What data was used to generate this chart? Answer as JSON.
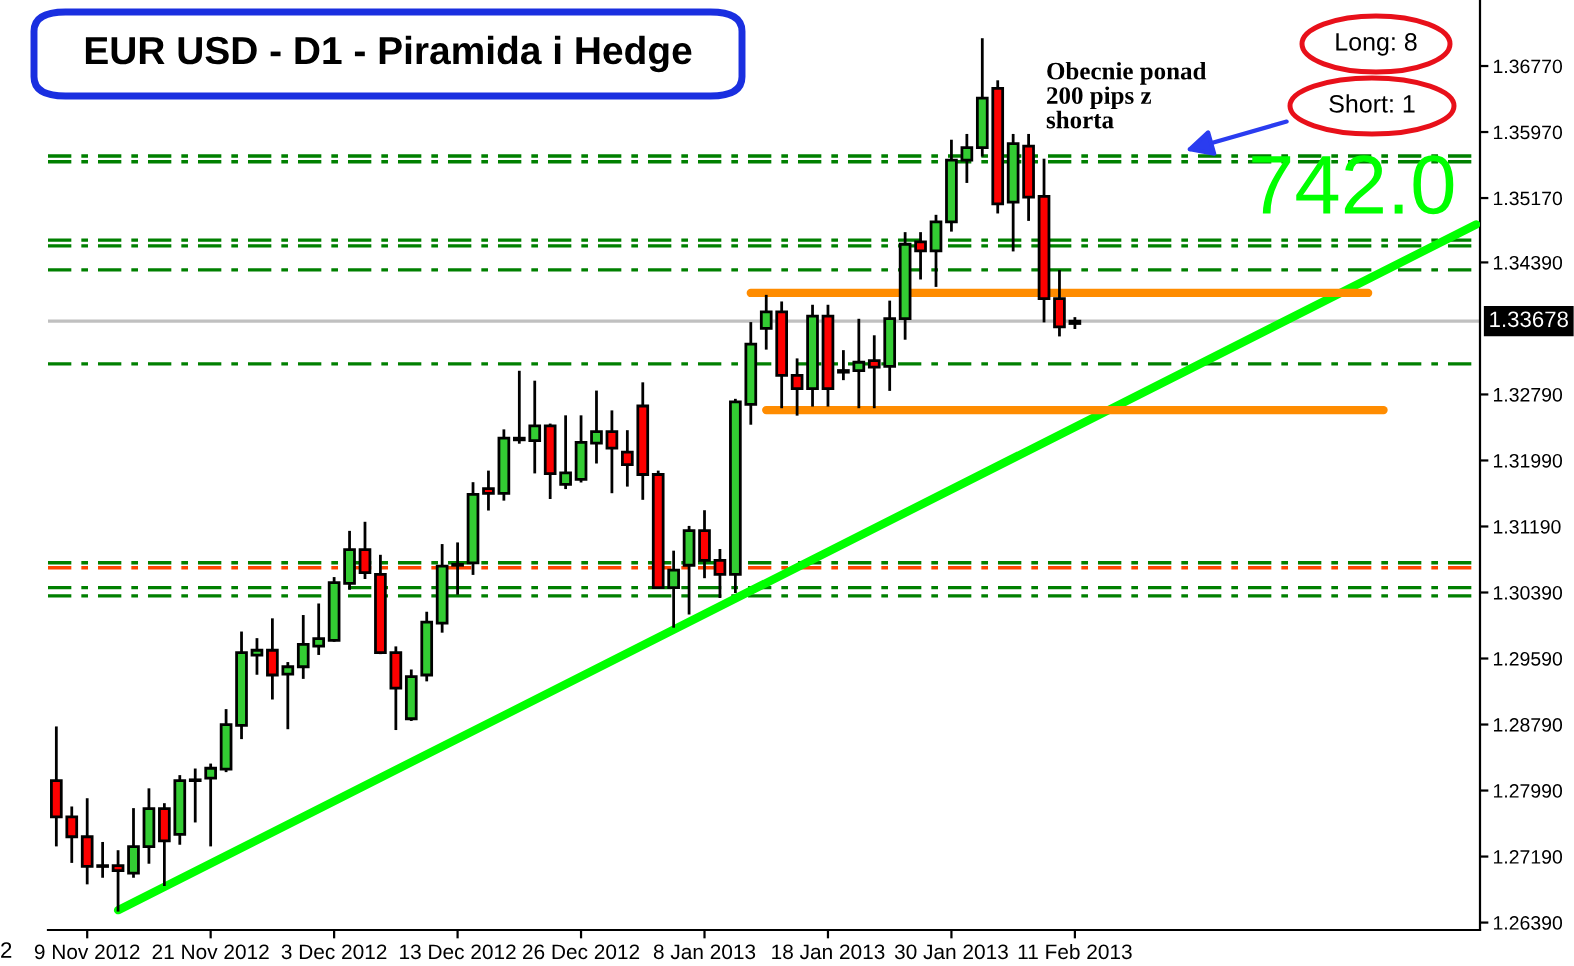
{
  "chart_data": {
    "type": "candlestick",
    "title": "EUR USD - D1 - Piramida i Hedge",
    "categories": [
      null,
      null,
      "9 Nov 2012",
      null,
      null,
      null,
      null,
      null,
      null,
      null,
      "21 Nov 2012",
      null,
      null,
      null,
      null,
      null,
      null,
      null,
      "3 Dec 2012",
      null,
      null,
      null,
      null,
      null,
      null,
      null,
      "13 Dec 2012",
      null,
      null,
      null,
      null,
      null,
      null,
      null,
      "26 Dec 2012",
      null,
      null,
      null,
      null,
      null,
      null,
      null,
      "8 Jan 2013",
      null,
      null,
      null,
      null,
      null,
      null,
      null,
      "18 Jan 2013",
      null,
      null,
      null,
      null,
      null,
      null,
      null,
      "30 Jan 2013",
      null,
      null,
      null,
      null,
      null,
      null,
      null,
      "11 Feb 2013",
      null,
      null,
      null,
      null,
      null,
      null,
      null,
      null,
      null,
      null,
      null,
      null,
      null,
      null,
      null,
      null,
      null,
      null,
      null,
      null,
      null,
      null,
      null,
      null,
      null,
      null
    ],
    "ohlc": [
      [
        1.2811,
        1.2875,
        1.2733,
        1.2767
      ],
      [
        1.2767,
        1.2778,
        1.2713,
        1.2743
      ],
      [
        1.2743,
        1.2788,
        1.2687,
        1.2707
      ],
      [
        1.2708,
        1.2735,
        1.2695,
        1.2707
      ],
      [
        1.2708,
        1.2725,
        1.2654,
        1.2702
      ],
      [
        1.2699,
        1.2776,
        1.2695,
        1.2731
      ],
      [
        1.2731,
        1.28,
        1.2712,
        1.2777
      ],
      [
        1.2777,
        1.2782,
        1.2685,
        1.2738
      ],
      [
        1.2746,
        1.2816,
        1.2735,
        1.2811
      ],
      [
        1.2811,
        1.2824,
        1.2762,
        1.2812
      ],
      [
        1.2814,
        1.283,
        1.2733,
        1.2826
      ],
      [
        1.2825,
        1.2896,
        1.2823,
        1.2879
      ],
      [
        1.2878,
        1.299,
        1.2863,
        1.2966
      ],
      [
        1.2963,
        1.2982,
        1.2941,
        1.2969
      ],
      [
        1.2969,
        1.3006,
        1.2911,
        1.2939
      ],
      [
        1.294,
        1.2953,
        1.2875,
        1.2949
      ],
      [
        1.2949,
        1.301,
        1.2936,
        1.2976
      ],
      [
        1.2974,
        1.3024,
        1.2965,
        1.2983
      ],
      [
        1.2981,
        1.3056,
        1.2981,
        1.3051
      ],
      [
        1.305,
        1.3112,
        1.3044,
        1.3091
      ],
      [
        1.3091,
        1.3123,
        1.3057,
        1.3063
      ],
      [
        1.3061,
        1.3083,
        1.2966,
        1.2966
      ],
      [
        1.2966,
        1.2972,
        1.2874,
        1.2923
      ],
      [
        1.2886,
        1.2944,
        1.2885,
        1.2937
      ],
      [
        1.2939,
        1.3014,
        1.2933,
        1.3003
      ],
      [
        1.3002,
        1.3096,
        1.2992,
        1.3071
      ],
      [
        1.3072,
        1.3098,
        1.3038,
        1.3073
      ],
      [
        1.3075,
        1.3171,
        1.3062,
        1.3158
      ],
      [
        1.3165,
        1.3185,
        1.314,
        1.3159
      ],
      [
        1.3159,
        1.3235,
        1.3152,
        1.3226
      ],
      [
        1.3226,
        1.3306,
        1.3221,
        1.3224
      ],
      [
        1.3223,
        1.3294,
        1.3185,
        1.3241
      ],
      [
        1.3241,
        1.3242,
        1.3154,
        1.3183
      ],
      [
        1.317,
        1.3252,
        1.3166,
        1.3184
      ],
      [
        1.3176,
        1.3252,
        1.3174,
        1.3221
      ],
      [
        1.322,
        1.3282,
        1.3197,
        1.3234
      ],
      [
        1.3234,
        1.3258,
        1.3161,
        1.3214
      ],
      [
        1.3209,
        1.3234,
        1.3169,
        1.3194
      ],
      [
        1.3265,
        1.3292,
        1.3153,
        1.3182
      ],
      [
        1.3182,
        1.3185,
        1.3045,
        1.3045
      ],
      [
        1.3045,
        1.3088,
        1.2998,
        1.3066
      ],
      [
        1.3072,
        1.3118,
        1.3014,
        1.3114
      ],
      [
        1.3114,
        1.3137,
        1.3058,
        1.3078
      ],
      [
        1.3078,
        1.309,
        1.3034,
        1.3061
      ],
      [
        1.3061,
        1.3272,
        1.304,
        1.327
      ],
      [
        1.3267,
        1.3365,
        1.3244,
        1.334
      ],
      [
        1.3359,
        1.3398,
        1.3335,
        1.3379
      ],
      [
        1.3379,
        1.339,
        1.3264,
        1.3302
      ],
      [
        1.3302,
        1.3321,
        1.3255,
        1.3286
      ],
      [
        1.3286,
        1.3386,
        1.3266,
        1.3374
      ],
      [
        1.3374,
        1.3386,
        1.3266,
        1.3286
      ],
      [
        1.3308,
        1.3331,
        1.3298,
        1.3306
      ],
      [
        1.3308,
        1.3369,
        1.3264,
        1.3318
      ],
      [
        1.332,
        1.3349,
        1.3264,
        1.3312
      ],
      [
        1.3313,
        1.3391,
        1.3285,
        1.3371
      ],
      [
        1.3371,
        1.3474,
        1.3347,
        1.3461
      ],
      [
        1.3464,
        1.3474,
        1.342,
        1.3453
      ],
      [
        1.3453,
        1.3495,
        1.3411,
        1.3488
      ],
      [
        1.3488,
        1.3586,
        1.3478,
        1.3563
      ],
      [
        1.3563,
        1.3593,
        1.3537,
        1.3578
      ],
      [
        1.3578,
        1.3709,
        1.3569,
        1.3638
      ],
      [
        1.365,
        1.3658,
        1.35,
        1.351
      ],
      [
        1.3512,
        1.3593,
        1.3454,
        1.3583
      ],
      [
        1.358,
        1.3593,
        1.3491,
        1.3518
      ],
      [
        1.3519,
        1.3563,
        1.3368,
        1.3395
      ],
      [
        1.3395,
        1.3428,
        1.3351,
        1.3361
      ],
      [
        1.3365,
        1.3371,
        1.336,
        1.33678
      ],
      null,
      null,
      null,
      null,
      null,
      null,
      null,
      null,
      null,
      null,
      null,
      null,
      null,
      null,
      null,
      null,
      null,
      null,
      null,
      null,
      null,
      null,
      null,
      null,
      null,
      null
    ],
    "colors": [
      "#ff0000",
      "#ff0000",
      "#ff0000",
      "#000000",
      "#ff0000",
      "#33cc33",
      "#33cc33",
      "#ff0000",
      "#33cc33",
      "#000000",
      "#33cc33",
      "#33cc33",
      "#33cc33",
      "#33cc33",
      "#ff0000",
      "#33cc33",
      "#33cc33",
      "#33cc33",
      "#33cc33",
      "#33cc33",
      "#ff0000",
      "#ff0000",
      "#ff0000",
      "#33cc33",
      "#33cc33",
      "#33cc33",
      "#000000",
      "#33cc33",
      "#ff0000",
      "#33cc33",
      "#000000",
      "#33cc33",
      "#ff0000",
      "#33cc33",
      "#33cc33",
      "#33cc33",
      "#ff0000",
      "#ff0000",
      "#ff0000",
      "#ff0000",
      "#33cc33",
      "#33cc33",
      "#ff0000",
      "#ff0000",
      "#33cc33",
      "#33cc33",
      "#33cc33",
      "#ff0000",
      "#ff0000",
      "#33cc33",
      "#ff0000",
      "#000000",
      "#33cc33",
      "#ff0000",
      "#33cc33",
      "#33cc33",
      "#ff0000",
      "#33cc33",
      "#33cc33",
      "#33cc33",
      "#33cc33",
      "#ff0000",
      "#33cc33",
      "#ff0000",
      "#ff0000",
      "#ff0000",
      "#000000",
      null,
      null,
      null,
      null,
      null,
      null,
      null,
      null,
      null,
      null,
      null,
      null,
      null,
      null,
      null,
      null,
      null,
      null,
      null,
      null,
      null,
      null,
      null,
      null,
      null,
      null
    ],
    "series": [
      {
        "type": "line",
        "color": "#00ff00",
        "values": [
          null,
          null,
          null,
          null,
          1.2654,
          null,
          null,
          null,
          null,
          null,
          null,
          null,
          null,
          null,
          null,
          null,
          null,
          null,
          null,
          null,
          null,
          null,
          null,
          null,
          null,
          null,
          null,
          null,
          null,
          null,
          null,
          null,
          null,
          null,
          null,
          null,
          null,
          null,
          null,
          null,
          null,
          null,
          null,
          null,
          null,
          null,
          null,
          null,
          null,
          null,
          null,
          null,
          null,
          null,
          null,
          null,
          null,
          null,
          null,
          null,
          null,
          null,
          null,
          null,
          null,
          null,
          null,
          null,
          null,
          null,
          null,
          null,
          null,
          null,
          null,
          null,
          null,
          null,
          null,
          null,
          null,
          null,
          null,
          null,
          null,
          null,
          null,
          null,
          null,
          null,
          null,
          null,
          1.3485
        ]
      },
      {
        "type": "line",
        "color": "#ff8c00",
        "values": [
          null,
          null,
          null,
          null,
          null,
          null,
          null,
          null,
          null,
          null,
          null,
          null,
          null,
          null,
          null,
          null,
          null,
          null,
          null,
          null,
          null,
          null,
          null,
          null,
          null,
          null,
          null,
          null,
          null,
          null,
          null,
          null,
          null,
          null,
          null,
          null,
          null,
          null,
          null,
          null,
          null,
          null,
          null,
          null,
          null,
          1.3402,
          null,
          null,
          null,
          null,
          null,
          null,
          null,
          null,
          null,
          null,
          null,
          null,
          null,
          null,
          null,
          null,
          null,
          null,
          null,
          null,
          null,
          null,
          null,
          null,
          null,
          null,
          null,
          null,
          null,
          null,
          null,
          null,
          null,
          null,
          null,
          null,
          null,
          null,
          null,
          1.3402,
          null,
          null,
          null,
          null,
          null,
          null,
          null
        ]
      },
      {
        "type": "line",
        "color": "#ff8c00",
        "values": [
          null,
          null,
          null,
          null,
          null,
          null,
          null,
          null,
          null,
          null,
          null,
          null,
          null,
          null,
          null,
          null,
          null,
          null,
          null,
          null,
          null,
          null,
          null,
          null,
          null,
          null,
          null,
          null,
          null,
          null,
          null,
          null,
          null,
          null,
          null,
          null,
          null,
          null,
          null,
          null,
          null,
          null,
          null,
          null,
          null,
          null,
          1.326,
          null,
          null,
          null,
          null,
          null,
          null,
          null,
          null,
          null,
          null,
          null,
          null,
          null,
          null,
          null,
          null,
          null,
          null,
          null,
          null,
          null,
          null,
          null,
          null,
          null,
          null,
          null,
          null,
          null,
          null,
          null,
          null,
          null,
          null,
          null,
          null,
          null,
          null,
          null,
          1.326,
          null,
          null,
          null,
          null,
          null,
          null
        ]
      }
    ],
    "ylim": [
      1.263,
      1.3757
    ],
    "yticks": [
      {
        "value": 1.2639,
        "label": "1.26390"
      },
      {
        "value": 1.2719,
        "label": "1.27190"
      },
      {
        "value": 1.2799,
        "label": "1.27990"
      },
      {
        "value": 1.2879,
        "label": "1.28790"
      },
      {
        "value": 1.2959,
        "label": "1.29590"
      },
      {
        "value": 1.3039,
        "label": "1.30390"
      },
      {
        "value": 1.3119,
        "label": "1.31190"
      },
      {
        "value": 1.3199,
        "label": "1.31990"
      },
      {
        "value": 1.3279,
        "label": "1.32790"
      },
      {
        "value": 1.3439,
        "label": "1.34390"
      },
      {
        "value": 1.3517,
        "label": "1.35170"
      },
      {
        "value": 1.3597,
        "label": "1.35970"
      },
      {
        "value": 1.3677,
        "label": "1.36770"
      }
    ],
    "ref_lines": [
      {
        "axis": "y",
        "value": 1.3568,
        "color": "#008000",
        "line_style": "dashed"
      },
      {
        "axis": "y",
        "value": 1.3561,
        "color": "#008000",
        "line_style": "dashed"
      },
      {
        "axis": "y",
        "value": 1.3466,
        "color": "#008000",
        "line_style": "dashed"
      },
      {
        "axis": "y",
        "value": 1.3459,
        "color": "#008000",
        "line_style": "dashed"
      },
      {
        "axis": "y",
        "value": 1.343,
        "color": "#008000",
        "line_style": "dashed"
      },
      {
        "axis": "y",
        "value": 1.3316,
        "color": "#008000",
        "line_style": "dashed"
      },
      {
        "axis": "y",
        "value": 1.3075,
        "color": "#008000",
        "line_style": "dashed"
      },
      {
        "axis": "y",
        "value": 1.3069,
        "color": "#ff4500",
        "line_style": "dashed"
      },
      {
        "axis": "y",
        "value": 1.3045,
        "color": "#008000",
        "line_style": "dashed"
      },
      {
        "axis": "y",
        "value": 1.3035,
        "color": "#008000",
        "line_style": "dashed"
      },
      {
        "axis": "y",
        "value": 1.33678,
        "label": "1.33678",
        "color": "#c0c0c0",
        "line_style": "solid"
      }
    ],
    "annotations": [
      "Obecnie ponad\n200 pips z\nshorta",
      "742.0",
      "Long: 8",
      "Short: 1",
      "2"
    ],
    "grid": false
  }
}
